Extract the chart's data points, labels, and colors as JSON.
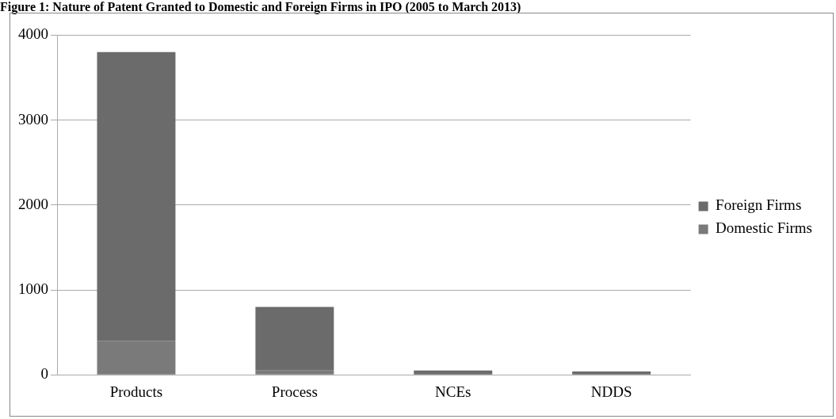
{
  "chart_data": {
    "type": "bar",
    "title": "Figure 1: Nature of Patent Granted to Domestic and Foreign Firms in IPO (2005 to March 2013)",
    "categories": [
      "Products",
      "Process",
      "NCEs",
      "NDDS"
    ],
    "stacked": true,
    "series": [
      {
        "name": "Domestic Firms",
        "color": "#7a7a7a",
        "values": [
          400,
          50,
          0,
          0
        ]
      },
      {
        "name": "Foreign Firms",
        "color": "#6b6b6b",
        "values": [
          3400,
          750,
          50,
          40
        ]
      }
    ],
    "ylim": [
      0,
      4000
    ],
    "yticks": [
      0,
      1000,
      2000,
      3000,
      4000
    ],
    "grid": "y",
    "legend": "right"
  }
}
